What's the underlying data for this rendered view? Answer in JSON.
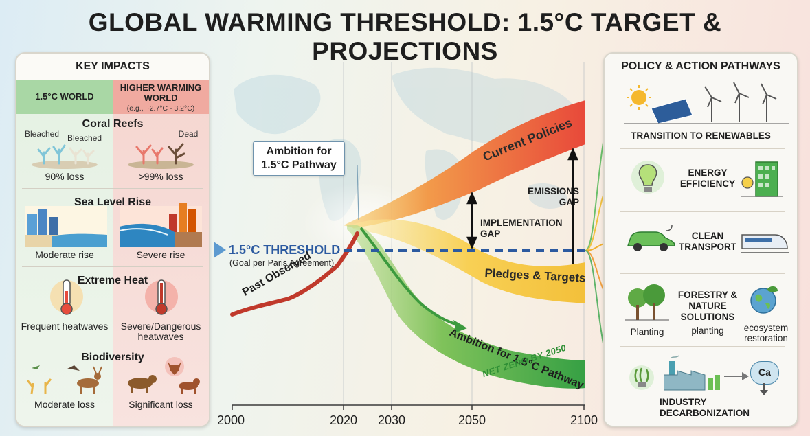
{
  "title": "GLOBAL WARMING THRESHOLD: 1.5°C TARGET & PROJECTIONS",
  "left_panel": {
    "title": "KEY IMPACTS",
    "col_green": "1.5°C WORLD",
    "col_red": "HIGHER WARMING WORLD",
    "col_red_note": "(e.g., ~2.7°C - 3.2°C)",
    "sections": [
      {
        "title": "Coral Reefs",
        "green_tags": [
          "Bleached",
          "Bleached"
        ],
        "red_tag": "Dead",
        "green": "90% loss",
        "red": ">99% loss"
      },
      {
        "title": "Sea Level Rise",
        "green": "Moderate rise",
        "red": "Severe rise"
      },
      {
        "title": "Extreme Heat",
        "green": "Frequent heatwaves",
        "red": "Severe/Dangerous heatwaves"
      },
      {
        "title": "Biodiversity",
        "green": "Moderate loss",
        "red": "Significant loss"
      }
    ]
  },
  "right_panel": {
    "title": "POLICY & ACTION PATHWAYS",
    "items": {
      "renewables": "TRANSITION TO RENEWABLES",
      "efficiency": "ENERGY EFFICIENCY",
      "transport": "CLEAN TRANSPORT",
      "forestry": "FORESTRY & NATURE SOLUTIONS",
      "planting": "Planting",
      "planting_lower": "planting",
      "ecosystem": "ecosystem restoration",
      "industry": "INDUSTRY DECARBONIZATION",
      "ca": "Ca"
    }
  },
  "chart": {
    "threshold": "1.5°C THRESHOLD",
    "threshold_note": "(Goal per Paris Agreement)",
    "ambition_box": "Ambition for 1.5°C Pathway",
    "past": "Past Observed",
    "current": "Current Policies",
    "pledges": "Pledges & Targets",
    "ambition": "Ambition for 1.5°C Pathway",
    "net_zero": "NET ZERO BY 2050",
    "implementation_gap": "IMPLEMENTATION GAP",
    "emissions_gap": "EMISSIONS GAP",
    "x_ticks": [
      "2000",
      "2020",
      "2030",
      "2050",
      "2100"
    ]
  },
  "colors": {
    "current": "#e8493a",
    "pledges": "#f5c63a",
    "ambition": "#3fa444",
    "threshold": "#2c5aa0",
    "past": "#c0392b"
  }
}
